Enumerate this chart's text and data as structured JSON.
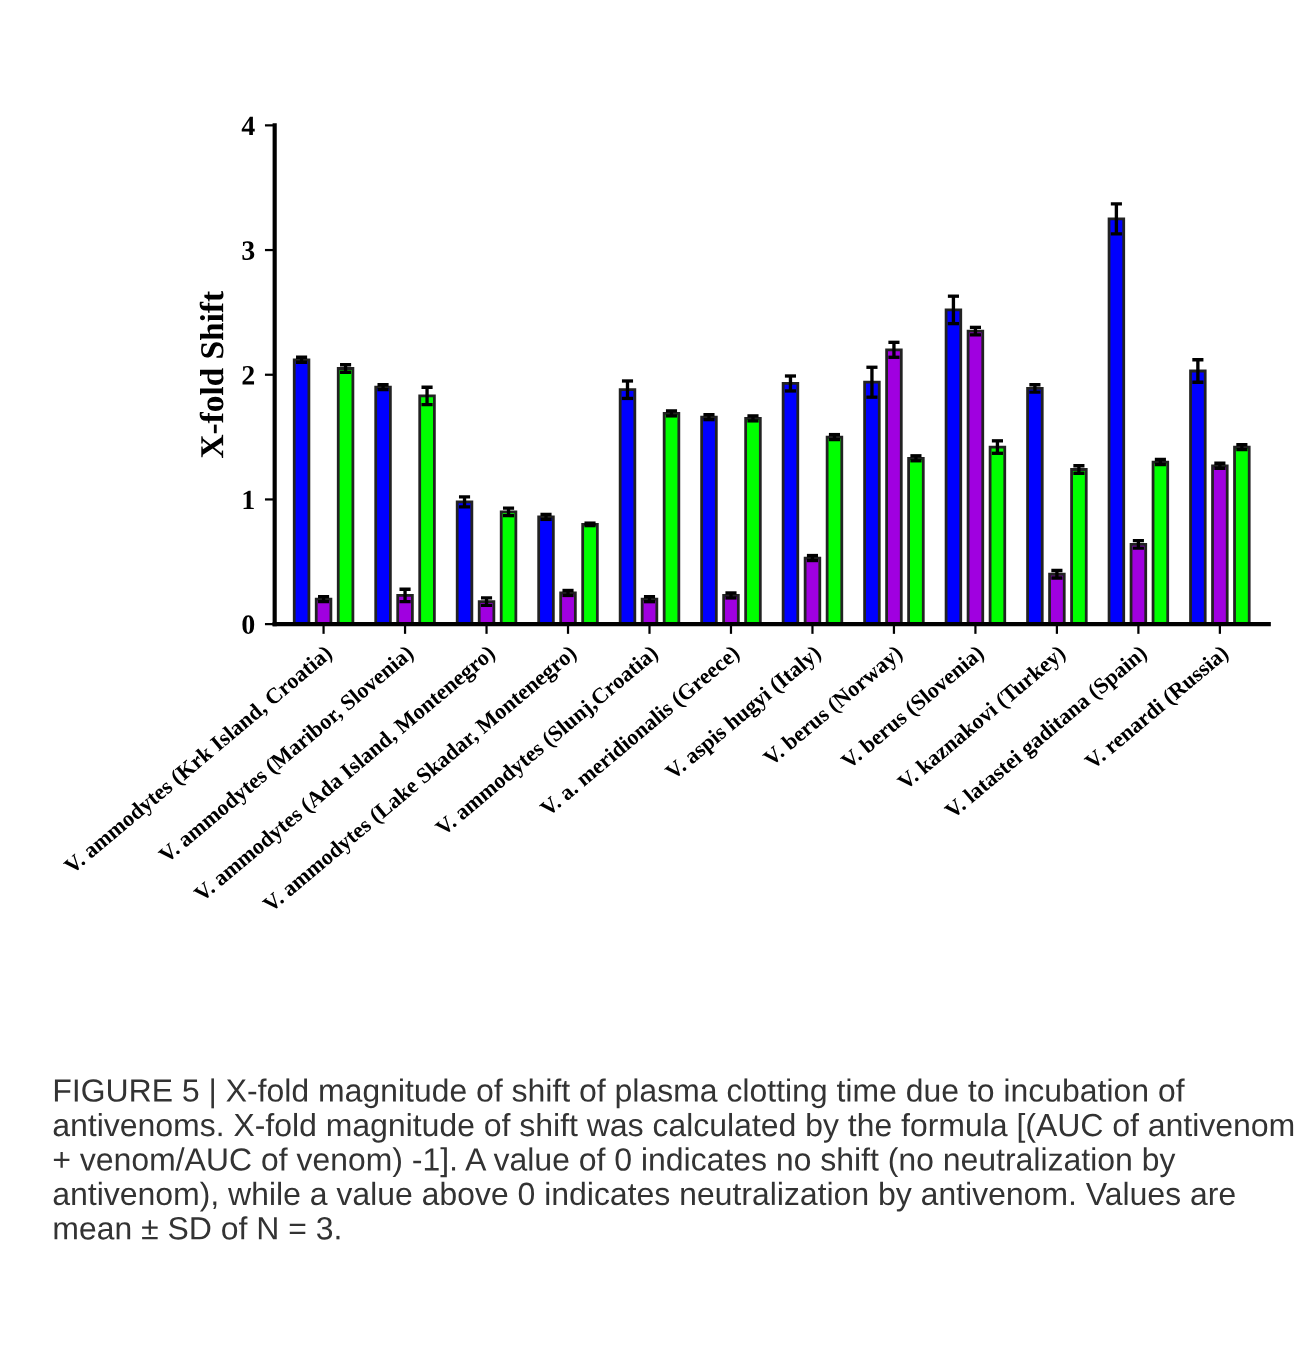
{
  "chart_data": {
    "type": "bar",
    "ylabel": "X-fold Shift",
    "categories": [
      "V. ammodytes (Krk Island, Croatia)",
      "V. ammodytes (Maribor, Slovenia)",
      "V. ammodytes (Ada Island, Montenegro)",
      "V. ammodytes (Lake Skadar, Montenegro)",
      "V. ammodytes (Slunj,Croatia)",
      "V. a. meridionalis (Greece)",
      "V. aspis hugyi (Italy)",
      "V. berus (Norway)",
      "V. berus (Slovenia)",
      "V. kaznakovi (Turkey)",
      "V. latastei gaditana (Spain)",
      "V. renardi (Russia)"
    ],
    "series": [
      {
        "color": "#0000ff",
        "values": [
          2.12,
          1.9,
          0.98,
          0.86,
          1.88,
          1.66,
          1.93,
          1.94,
          2.52,
          1.89,
          3.25,
          2.03
        ],
        "errors": [
          0.02,
          0.02,
          0.04,
          0.02,
          0.07,
          0.02,
          0.06,
          0.12,
          0.11,
          0.03,
          0.12,
          0.09
        ]
      },
      {
        "color": "#a000e0",
        "values": [
          0.2,
          0.23,
          0.18,
          0.25,
          0.2,
          0.23,
          0.53,
          2.2,
          2.35,
          0.4,
          0.64,
          1.27
        ],
        "errors": [
          0.02,
          0.05,
          0.03,
          0.02,
          0.02,
          0.02,
          0.02,
          0.06,
          0.03,
          0.03,
          0.03,
          0.02
        ]
      },
      {
        "color": "#00ff00",
        "values": [
          2.05,
          1.83,
          0.9,
          0.8,
          1.69,
          1.65,
          1.5,
          1.33,
          1.42,
          1.24,
          1.3,
          1.42
        ],
        "errors": [
          0.03,
          0.07,
          0.03,
          0.01,
          0.02,
          0.02,
          0.02,
          0.02,
          0.05,
          0.03,
          0.02,
          0.02
        ]
      }
    ],
    "ylim": [
      0,
      4
    ],
    "yticks": [
      0,
      1,
      2,
      3,
      4
    ],
    "grid": false,
    "legend": false,
    "annotations": [
      "FIGURE 5 | X-fold magnitude of shift of plasma clotting time due to incubation of antivenoms. X-fold magnitude of shift was calculated by the formula [(AUC of antivenom + venom/AUC of venom) -1]. A value of 0 indicates no shift (no neutralization by antivenom), while a value above 0 indicates neutralization by antivenom. Values are mean ± SD of N = 3."
    ]
  }
}
